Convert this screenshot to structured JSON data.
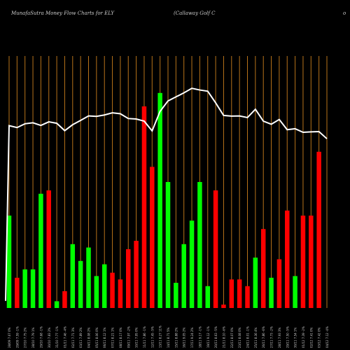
{
  "header": {
    "left": "MunafaSutra  Money Flow  Charts for ELY",
    "mid": "(Callaway Golf  C",
    "right": "o"
  },
  "colors": {
    "background": "#000000",
    "grid": "#b8731a",
    "up": "#00ff00",
    "down": "#ff0000",
    "price": "#ffffff",
    "label": "#cccccc"
  },
  "chart_data": {
    "type": "bar",
    "grid": true,
    "xlabels": [
      "28/09 7.67 0%",
      "29/09 7.59 -1%",
      "27/10 7.75 2%",
      "28/10 7.79 1%",
      "29/10 7.68 -1%",
      "30/10 7.83 2%",
      "31/10 7.77 -1%",
      "01/11 7.46 -4%",
      "02/11 7.71 3%",
      "03/11 7.89 2%",
      "04/11 8.08 2%",
      "05/11 8.06 0%",
      "06/11 8.12 1%",
      "07/11 8.21 1%",
      "08/11 8.17 0%",
      "09/11 7.97 -2%",
      "10/11 7.95 0%",
      "11/11 7.86 -1%",
      "12/11 7.45 -5%",
      "13/11 8.27 11%",
      "14/11 8.71 5%",
      "15/11 8.88 2%",
      "16/11 9.05 2%",
      "17/11 9.24 2%",
      "18/11 9.17 -1%",
      "19/11 9.12 -1%",
      "20/11 8.63 -5%",
      "21/11 8.10 -6%",
      "22/11 8.07 0%",
      "23/11 8.08 0%",
      "24/11 8.01 -1%",
      "25/11 8.36 4%",
      "26/11 7.86 -6%",
      "27/11 7.73 -2%",
      "28/11 7.93 3%",
      "29/11 7.50 -5%",
      "30/11 7.54 1%",
      "01/12 7.39 -2%",
      "02/12 7.41 0%",
      "03/12 7.42 0%",
      "04/12 7.12 -4%"
    ],
    "volume": [
      55,
      18,
      23,
      23,
      68,
      70,
      4,
      10,
      38,
      28,
      36,
      19,
      26,
      21,
      17,
      35,
      40,
      120,
      84,
      128,
      75,
      15,
      38,
      52,
      75,
      13,
      70,
      2,
      17,
      17,
      13,
      30,
      47,
      18,
      29,
      58,
      19,
      55,
      55,
      93,
      0
    ],
    "direction": [
      "up",
      "down",
      "up",
      "up",
      "up",
      "down",
      "up",
      "down",
      "up",
      "up",
      "up",
      "up",
      "up",
      "down",
      "down",
      "down",
      "down",
      "down",
      "down",
      "up",
      "up",
      "up",
      "up",
      "up",
      "up",
      "up",
      "down",
      "down",
      "down",
      "down",
      "down",
      "up",
      "down",
      "up",
      "down",
      "down",
      "up",
      "down",
      "down",
      "down",
      "down"
    ],
    "price": [
      7.67,
      7.59,
      7.75,
      7.79,
      7.68,
      7.83,
      7.77,
      7.46,
      7.71,
      7.89,
      8.08,
      8.06,
      8.12,
      8.21,
      8.17,
      7.97,
      7.95,
      7.86,
      7.45,
      8.27,
      8.71,
      8.88,
      9.05,
      9.24,
      9.17,
      9.12,
      8.63,
      8.1,
      8.07,
      8.08,
      8.01,
      8.36,
      7.86,
      7.73,
      7.93,
      7.5,
      7.54,
      7.39,
      7.41,
      7.42,
      7.12
    ],
    "price_start": 0.3,
    "volume_range": [
      0,
      150
    ],
    "price_range": [
      0,
      10.6
    ]
  }
}
